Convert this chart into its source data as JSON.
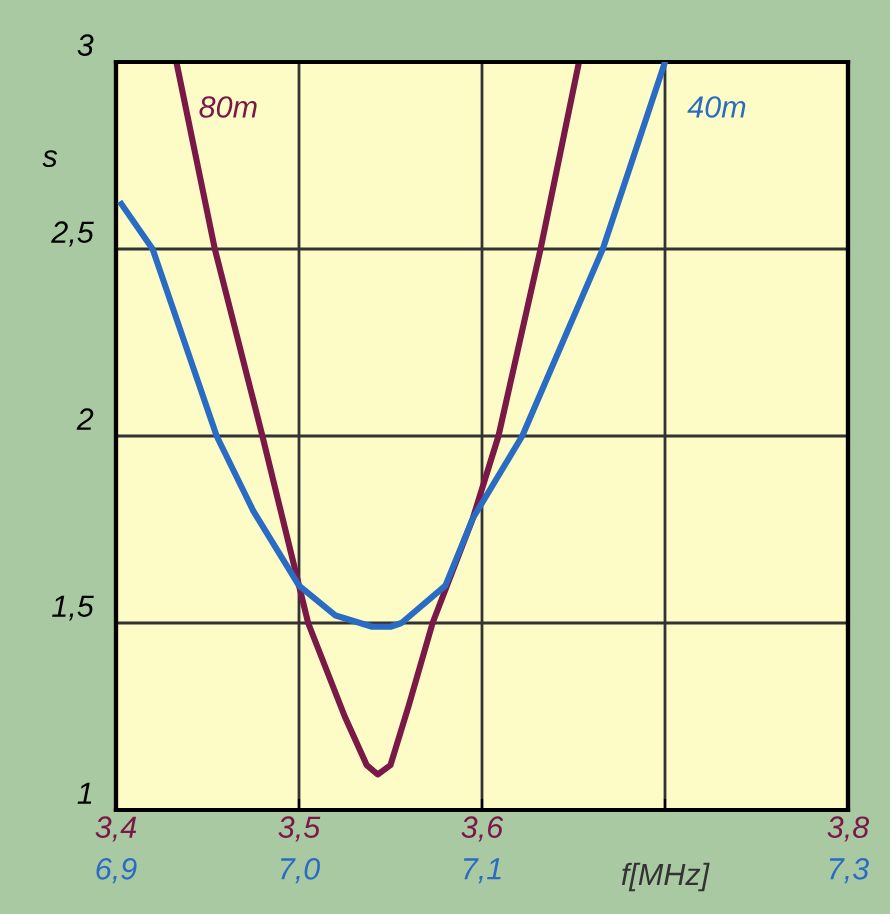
{
  "chart_data": {
    "type": "line",
    "ylabel": "s",
    "xlabel": "f[MHz]",
    "xlim": [
      3.4,
      3.8
    ],
    "xticks": [
      {
        "value": 3.4,
        "label": "3,4"
      },
      {
        "value": 3.5,
        "label": "3,5"
      },
      {
        "value": 3.6,
        "label": "3,6"
      },
      {
        "value": 3.7,
        "label": null
      },
      {
        "value": 3.8,
        "label": "3,8"
      }
    ],
    "x2lim": [
      6.9,
      7.3
    ],
    "x2ticks": [
      {
        "value": 6.9,
        "label": "6,9"
      },
      {
        "value": 7.0,
        "label": "7,0"
      },
      {
        "value": 7.1,
        "label": "7,1"
      },
      {
        "value": 7.2,
        "label": null
      },
      {
        "value": 7.3,
        "label": "7,3"
      }
    ],
    "ylim": [
      1,
      3
    ],
    "yticks": [
      1,
      {
        "value": 1.5,
        "label": "1,5"
      },
      2,
      {
        "value": 2.5,
        "label": "2,5"
      },
      3
    ],
    "grid": true,
    "legend": false,
    "marker": "none",
    "line_style": "solid",
    "series": [
      {
        "name": "80m",
        "color": "#7a1848",
        "x": [
          3.433,
          3.454,
          3.48,
          3.5,
          3.505,
          3.525,
          3.537,
          3.543,
          3.55,
          3.56,
          3.573,
          3.595,
          3.609,
          3.632,
          3.653
        ],
        "values": [
          3,
          2.5,
          2,
          1.6,
          1.5,
          1.25,
          1.12,
          1.095,
          1.12,
          1.28,
          1.5,
          1.78,
          2,
          2.5,
          3
        ]
      },
      {
        "name": "40m",
        "color": "#2a6cc4",
        "axis": "x2",
        "x": [
          6.903,
          6.92,
          6.955,
          6.975,
          7.0,
          7.02,
          7.04,
          7.05,
          7.056,
          7.08,
          7.095,
          7.122,
          7.166,
          7.2
        ],
        "values": [
          2.62,
          2.5,
          2,
          1.8,
          1.6,
          1.52,
          1.49,
          1.49,
          1.5,
          1.6,
          1.78,
          2,
          2.5,
          3
        ]
      }
    ]
  }
}
